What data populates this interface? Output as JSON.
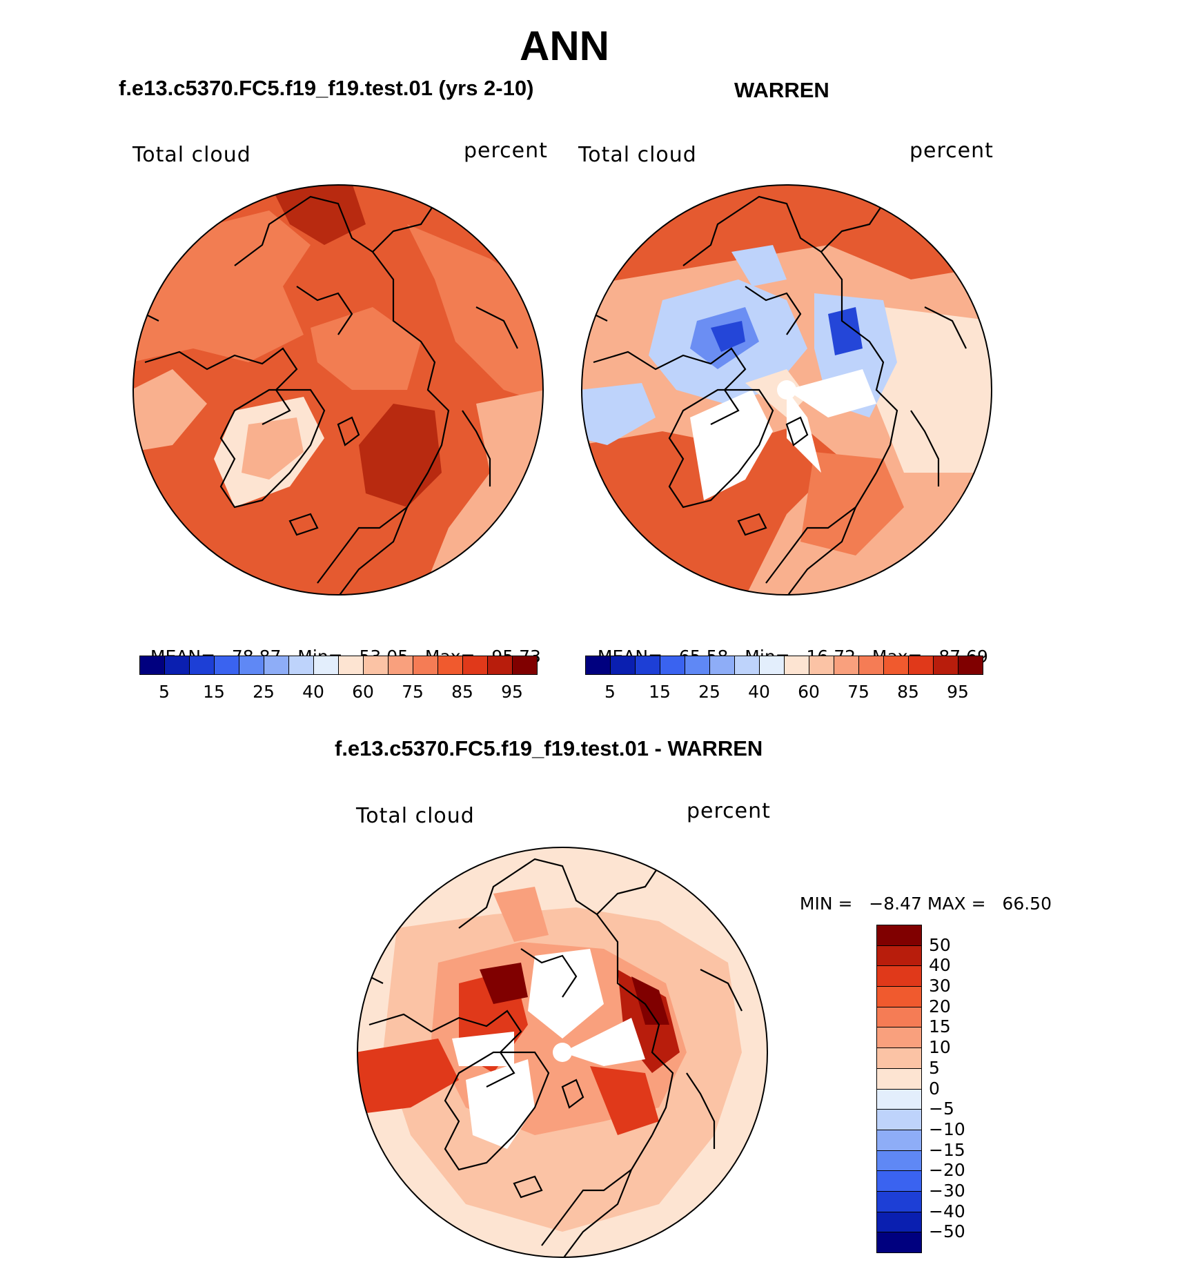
{
  "figure": {
    "title": "ANN",
    "panel_left_title": "f.e13.c5370.FC5.f19_f19.test.01 (yrs 2-10)",
    "panel_right_title": "WARREN",
    "panel_bottom_title": "f.e13.c5370.FC5.f19_f19.test.01 - WARREN"
  },
  "panels": {
    "left": {
      "variable": "Total cloud",
      "units": "percent",
      "mean_label": "MEAN=",
      "mean": "78.87",
      "min_label": "Min=",
      "min": "53.05",
      "max_label": "Max=",
      "max": "95.73"
    },
    "right": {
      "variable": "Total cloud",
      "units": "percent",
      "mean_label": "MEAN=",
      "mean": "65.58",
      "min_label": "Min=",
      "min": "16.72",
      "max_label": "Max=",
      "max": "87.69"
    },
    "bottom": {
      "variable": "Total cloud",
      "units": "percent",
      "min_label": "MIN =",
      "min": "−8.47",
      "max_label": "MAX =",
      "max": "66.50"
    }
  },
  "colorbar_abs": {
    "tick_labels": [
      "5",
      "15",
      "25",
      "40",
      "60",
      "75",
      "85",
      "95"
    ],
    "colors": [
      "#00007f",
      "#0a1fb0",
      "#1d3fd6",
      "#3a63f0",
      "#5f88f5",
      "#8eadf7",
      "#bed3fb",
      "#e3eefc",
      "#fde4d2",
      "#fbc3a5",
      "#f9a07d",
      "#f57c55",
      "#f05a2e",
      "#e0391a",
      "#b81d0c",
      "#800000"
    ]
  },
  "colorbar_diff": {
    "tick_labels": [
      "50",
      "40",
      "30",
      "20",
      "15",
      "10",
      "5",
      "0",
      "−5",
      "−10",
      "−15",
      "−20",
      "−30",
      "−40",
      "−50"
    ],
    "colors": [
      "#800000",
      "#b81d0c",
      "#e0391a",
      "#f05a2e",
      "#f57c55",
      "#f9a07d",
      "#fbc3a5",
      "#fde4d2",
      "#e3eefc",
      "#bed3fb",
      "#8eadf7",
      "#5f88f5",
      "#3a63f0",
      "#1d3fd6",
      "#0a1fb0",
      "#00007f"
    ]
  },
  "map_colors": {
    "ocean_high": "#e55a30",
    "ocean_mid": "#f27d52",
    "land_low": "#f9b08e",
    "very_high": "#b82a10",
    "pale": "#fde4d2",
    "blue_light": "#bed3fb",
    "blue_mid": "#6b8ef3",
    "blue_dark": "#2446d8",
    "coast": "#000000"
  }
}
